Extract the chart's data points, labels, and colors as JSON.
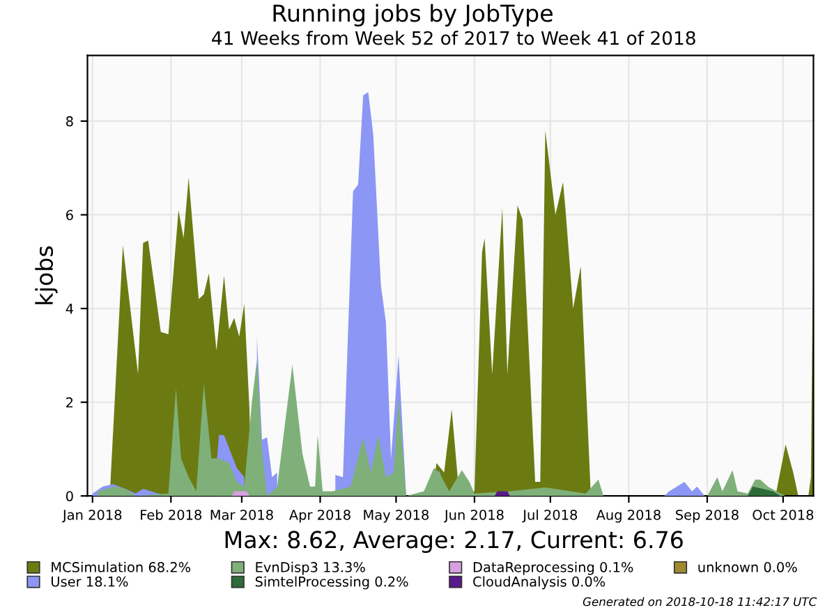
{
  "chart_data": {
    "type": "area",
    "title": "Running jobs by JobType",
    "subtitle": "41 Weeks from Week 52 of 2017 to Week 41 of 2018",
    "ylabel": "kjobs",
    "annotations": [
      "Max: 8.62, Average: 2.17, Current: 6.76",
      "Generated on 2018-10-18 11:42:17 UTC"
    ],
    "xlim": [
      "2017-12-30",
      "2018-10-13"
    ],
    "xticks": [
      {
        "value": "2018-01-01",
        "label": "Jan 2018"
      },
      {
        "value": "2018-02-01",
        "label": "Feb 2018"
      },
      {
        "value": "2018-03-01",
        "label": "Mar 2018"
      },
      {
        "value": "2018-04-01",
        "label": "Apr 2018"
      },
      {
        "value": "2018-05-01",
        "label": "May 2018"
      },
      {
        "value": "2018-06-01",
        "label": "Jun 2018"
      },
      {
        "value": "2018-07-01",
        "label": "Jul 2018"
      },
      {
        "value": "2018-08-01",
        "label": "Aug 2018"
      },
      {
        "value": "2018-09-01",
        "label": "Sep 2018"
      },
      {
        "value": "2018-10-01",
        "label": "Oct 2018"
      }
    ],
    "ylim": [
      0,
      9.4
    ],
    "yticks": [
      0,
      2,
      4,
      6,
      8
    ],
    "grid": true,
    "legend": "bottom",
    "series": [
      {
        "name": "MCSimulation 68.2%",
        "color": "#6b7b12",
        "x": [
          "2018-01-07",
          "2018-01-08",
          "2018-01-13",
          "2018-01-19",
          "2018-01-21",
          "2018-01-23",
          "2018-01-28",
          "2018-01-31",
          "2018-02-04",
          "2018-02-06",
          "2018-02-08",
          "2018-02-12",
          "2018-02-14",
          "2018-02-16",
          "2018-02-19",
          "2018-02-22",
          "2018-02-24",
          "2018-02-26",
          "2018-02-28",
          "2018-03-02",
          "2018-03-04",
          "2018-03-05",
          "2018-05-15",
          "2018-05-17",
          "2018-05-20",
          "2018-05-23",
          "2018-05-26",
          "2018-06-01",
          "2018-06-04",
          "2018-06-05",
          "2018-06-08",
          "2018-06-12",
          "2018-06-14",
          "2018-06-18",
          "2018-06-20",
          "2018-06-25",
          "2018-06-27",
          "2018-06-29",
          "2018-07-03",
          "2018-07-06",
          "2018-07-07",
          "2018-07-10",
          "2018-07-13",
          "2018-07-17",
          "2018-09-28",
          "2018-10-02",
          "2018-10-05",
          "2018-10-07",
          "2018-10-11",
          "2018-10-12",
          "2018-10-13"
        ],
        "values": [
          0,
          0.2,
          5.35,
          2.6,
          5.4,
          5.45,
          3.5,
          3.45,
          6.1,
          5.5,
          6.8,
          4.2,
          4.3,
          4.75,
          3.1,
          4.7,
          3.55,
          3.8,
          3.4,
          4.1,
          1.9,
          0,
          0,
          0.7,
          0.5,
          1.85,
          0,
          0.1,
          5.2,
          5.5,
          2.6,
          6.15,
          2.6,
          6.2,
          5.9,
          0.3,
          0.3,
          7.8,
          6.0,
          6.7,
          6.1,
          4.0,
          4.9,
          0,
          0,
          1.1,
          0.5,
          0,
          0,
          0.4,
          5.9
        ]
      },
      {
        "name": "User 18.1%",
        "color": "#8c96f5",
        "x": [
          "2018-01-01",
          "2018-01-05",
          "2018-01-09",
          "2018-01-14",
          "2018-01-18",
          "2018-01-21",
          "2018-01-27",
          "2018-01-31",
          "2018-02-18",
          "2018-02-20",
          "2018-02-22",
          "2018-02-27",
          "2018-03-02",
          "2018-03-04",
          "2018-03-07",
          "2018-03-09",
          "2018-03-11",
          "2018-03-13",
          "2018-03-15",
          "2018-03-19",
          "2018-03-30",
          "2018-04-03",
          "2018-04-07",
          "2018-04-10",
          "2018-04-14",
          "2018-04-16",
          "2018-04-18",
          "2018-04-20",
          "2018-04-22",
          "2018-04-25",
          "2018-04-27",
          "2018-04-29",
          "2018-05-02",
          "2018-05-04",
          "2018-05-05",
          "2018-05-10",
          "2018-05-14",
          "2018-05-18",
          "2018-05-21",
          "2018-05-24",
          "2018-08-15",
          "2018-08-17",
          "2018-08-23",
          "2018-08-26",
          "2018-08-28",
          "2018-08-31"
        ],
        "values": [
          0.05,
          0.2,
          0.25,
          0.15,
          0.05,
          0.15,
          0.05,
          0,
          0,
          1.3,
          1.3,
          0.6,
          0.4,
          null,
          3.4,
          1.2,
          1.25,
          0.4,
          0.5,
          null,
          null,
          null,
          0.45,
          0.4,
          6.5,
          6.65,
          8.55,
          8.62,
          7.7,
          4.5,
          3.7,
          0.8,
          3.0,
          1.0,
          0,
          0,
          null,
          0.55,
          0.1,
          0,
          0,
          0.1,
          0.3,
          0.1,
          0.2,
          0
        ]
      },
      {
        "name": "EvnDisp3 13.3%",
        "color": "#7fb07a",
        "x": [
          "2018-01-03",
          "2018-01-10",
          "2018-01-14",
          "2018-01-18",
          "2018-01-31",
          "2018-02-03",
          "2018-02-05",
          "2018-02-08",
          "2018-02-11",
          "2018-02-14",
          "2018-02-17",
          "2018-02-20",
          "2018-02-24",
          "2018-02-27",
          "2018-03-02",
          "2018-03-05",
          "2018-03-07",
          "2018-03-09",
          "2018-03-11",
          "2018-03-15",
          "2018-03-21",
          "2018-03-25",
          "2018-03-28",
          "2018-03-30",
          "2018-03-31",
          "2018-04-02",
          "2018-04-06",
          "2018-04-13",
          "2018-04-18",
          "2018-04-21",
          "2018-04-24",
          "2018-04-27",
          "2018-04-30",
          "2018-05-02",
          "2018-05-05",
          "2018-05-12",
          "2018-05-16",
          "2018-05-18",
          "2018-05-22",
          "2018-05-27",
          "2018-05-30",
          "2018-06-01",
          "2018-06-15",
          "2018-06-29",
          "2018-07-15",
          "2018-07-20",
          "2018-07-22",
          "2018-09-01",
          "2018-09-05",
          "2018-09-07",
          "2018-09-11",
          "2018-09-13",
          "2018-09-17",
          "2018-09-20",
          "2018-09-22",
          "2018-09-25",
          "2018-09-30",
          "2018-10-02"
        ],
        "values": [
          0.1,
          0.2,
          0.15,
          0,
          0.05,
          2.3,
          0.8,
          0.4,
          0.1,
          2.4,
          0.8,
          0.8,
          0.7,
          0.3,
          0.2,
          2.0,
          2.9,
          1.0,
          0,
          0.2,
          2.8,
          0.9,
          0.2,
          0.2,
          1.3,
          0.1,
          0.1,
          0.2,
          1.25,
          0.5,
          1.3,
          0.4,
          0.5,
          2.1,
          0,
          0.1,
          0.6,
          0.5,
          0.1,
          0.55,
          0.3,
          0.05,
          0.1,
          0.18,
          0.05,
          0.35,
          0,
          0,
          0.4,
          0.1,
          0.55,
          0.1,
          0.05,
          0.35,
          0.35,
          0.2,
          0.05,
          0
        ]
      },
      {
        "name": "SimtelProcessing 0.2%",
        "color": "#2e6b3a",
        "x": [
          "2018-09-17",
          "2018-09-19",
          "2018-09-23",
          "2018-09-27",
          "2018-09-30"
        ],
        "values": [
          0,
          0.2,
          0.15,
          0.1,
          0
        ]
      },
      {
        "name": "DataReprocessing 0.1%",
        "color": "#d8a0e0",
        "x": [
          "2018-02-25",
          "2018-02-26",
          "2018-03-03",
          "2018-03-04"
        ],
        "values": [
          0,
          0.1,
          0.1,
          0
        ]
      },
      {
        "name": "CloudAnalysis 0.0%",
        "color": "#5a1a8a",
        "x": [
          "2018-06-09",
          "2018-06-10",
          "2018-06-14",
          "2018-06-15"
        ],
        "values": [
          0,
          0.1,
          0.1,
          0
        ]
      },
      {
        "name": "unknown 0.0%",
        "color": "#a08a30"
      }
    ]
  }
}
